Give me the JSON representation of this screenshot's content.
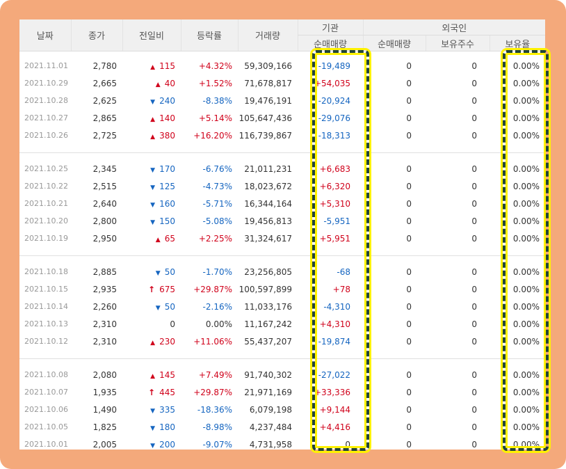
{
  "header": {
    "date": "날짜",
    "close": "종가",
    "change": "전일비",
    "rate": "등락률",
    "volume": "거래량",
    "institution": "기관",
    "institution_net": "순매매량",
    "foreign": "외국인",
    "foreign_net": "순매매량",
    "foreign_shares": "보유주수",
    "foreign_ratio": "보유율"
  },
  "groups": [
    [
      {
        "date": "2021.11.01",
        "close": "2,780",
        "dir": "up",
        "chg": "115",
        "rate": "+4.32%",
        "vol": "59,309,166",
        "inst": "-19,489",
        "inst_dir": "down",
        "fnet": "0",
        "fhold": "0",
        "fratio": "0.00%"
      },
      {
        "date": "2021.10.29",
        "close": "2,665",
        "dir": "up",
        "chg": "40",
        "rate": "+1.52%",
        "vol": "71,678,817",
        "inst": "+54,035",
        "inst_dir": "up",
        "fnet": "0",
        "fhold": "0",
        "fratio": "0.00%"
      },
      {
        "date": "2021.10.28",
        "close": "2,625",
        "dir": "down",
        "chg": "240",
        "rate": "-8.38%",
        "vol": "19,476,191",
        "inst": "-20,924",
        "inst_dir": "down",
        "fnet": "0",
        "fhold": "0",
        "fratio": "0.00%"
      },
      {
        "date": "2021.10.27",
        "close": "2,865",
        "dir": "up",
        "chg": "140",
        "rate": "+5.14%",
        "vol": "105,647,436",
        "inst": "-29,076",
        "inst_dir": "down",
        "fnet": "0",
        "fhold": "0",
        "fratio": "0.00%"
      },
      {
        "date": "2021.10.26",
        "close": "2,725",
        "dir": "up",
        "chg": "380",
        "rate": "+16.20%",
        "vol": "116,739,867",
        "inst": "-18,313",
        "inst_dir": "down",
        "fnet": "0",
        "fhold": "0",
        "fratio": "0.00%"
      }
    ],
    [
      {
        "date": "2021.10.25",
        "close": "2,345",
        "dir": "down",
        "chg": "170",
        "rate": "-6.76%",
        "vol": "21,011,231",
        "inst": "+6,683",
        "inst_dir": "up",
        "fnet": "0",
        "fhold": "0",
        "fratio": "0.00%"
      },
      {
        "date": "2021.10.22",
        "close": "2,515",
        "dir": "down",
        "chg": "125",
        "rate": "-4.73%",
        "vol": "18,023,672",
        "inst": "+6,320",
        "inst_dir": "up",
        "fnet": "0",
        "fhold": "0",
        "fratio": "0.00%"
      },
      {
        "date": "2021.10.21",
        "close": "2,640",
        "dir": "down",
        "chg": "160",
        "rate": "-5.71%",
        "vol": "16,344,164",
        "inst": "+5,310",
        "inst_dir": "up",
        "fnet": "0",
        "fhold": "0",
        "fratio": "0.00%"
      },
      {
        "date": "2021.10.20",
        "close": "2,800",
        "dir": "down",
        "chg": "150",
        "rate": "-5.08%",
        "vol": "19,456,813",
        "inst": "-5,951",
        "inst_dir": "down",
        "fnet": "0",
        "fhold": "0",
        "fratio": "0.00%"
      },
      {
        "date": "2021.10.19",
        "close": "2,950",
        "dir": "up",
        "chg": "65",
        "rate": "+2.25%",
        "vol": "31,324,617",
        "inst": "+5,951",
        "inst_dir": "up",
        "fnet": "0",
        "fhold": "0",
        "fratio": "0.00%"
      }
    ],
    [
      {
        "date": "2021.10.18",
        "close": "2,885",
        "dir": "down",
        "chg": "50",
        "rate": "-1.70%",
        "vol": "23,256,805",
        "inst": "-68",
        "inst_dir": "down",
        "fnet": "0",
        "fhold": "0",
        "fratio": "0.00%"
      },
      {
        "date": "2021.10.15",
        "close": "2,935",
        "dir": "limit",
        "chg": "675",
        "rate": "+29.87%",
        "vol": "100,597,899",
        "inst": "+78",
        "inst_dir": "up",
        "fnet": "0",
        "fhold": "0",
        "fratio": "0.00%"
      },
      {
        "date": "2021.10.14",
        "close": "2,260",
        "dir": "down",
        "chg": "50",
        "rate": "-2.16%",
        "vol": "11,033,176",
        "inst": "-4,310",
        "inst_dir": "down",
        "fnet": "0",
        "fhold": "0",
        "fratio": "0.00%"
      },
      {
        "date": "2021.10.13",
        "close": "2,310",
        "dir": "flat",
        "chg": "0",
        "rate": "0.00%",
        "vol": "11,167,242",
        "inst": "+4,310",
        "inst_dir": "up",
        "fnet": "0",
        "fhold": "0",
        "fratio": "0.00%"
      },
      {
        "date": "2021.10.12",
        "close": "2,310",
        "dir": "up",
        "chg": "230",
        "rate": "+11.06%",
        "vol": "55,437,207",
        "inst": "-19,874",
        "inst_dir": "down",
        "fnet": "0",
        "fhold": "0",
        "fratio": "0.00%"
      }
    ],
    [
      {
        "date": "2021.10.08",
        "close": "2,080",
        "dir": "up",
        "chg": "145",
        "rate": "+7.49%",
        "vol": "91,740,302",
        "inst": "-27,022",
        "inst_dir": "down",
        "fnet": "0",
        "fhold": "0",
        "fratio": "0.00%"
      },
      {
        "date": "2021.10.07",
        "close": "1,935",
        "dir": "limit",
        "chg": "445",
        "rate": "+29.87%",
        "vol": "21,971,169",
        "inst": "+33,336",
        "inst_dir": "up",
        "fnet": "0",
        "fhold": "0",
        "fratio": "0.00%"
      },
      {
        "date": "2021.10.06",
        "close": "1,490",
        "dir": "down",
        "chg": "335",
        "rate": "-18.36%",
        "vol": "6,079,198",
        "inst": "+9,144",
        "inst_dir": "up",
        "fnet": "0",
        "fhold": "0",
        "fratio": "0.00%"
      },
      {
        "date": "2021.10.05",
        "close": "1,825",
        "dir": "down",
        "chg": "180",
        "rate": "-8.98%",
        "vol": "4,237,484",
        "inst": "+4,416",
        "inst_dir": "up",
        "fnet": "0",
        "fhold": "0",
        "fratio": "0.00%"
      },
      {
        "date": "2021.10.01",
        "close": "2,005",
        "dir": "down",
        "chg": "200",
        "rate": "-9.07%",
        "vol": "4,731,958",
        "inst": "0",
        "inst_dir": "flat",
        "fnet": "0",
        "fhold": "0",
        "fratio": "0.00%"
      }
    ]
  ],
  "icons": {
    "up": "triangle-up-icon",
    "down": "triangle-down-icon",
    "limit": "upper-limit-arrow-icon"
  },
  "colors": {
    "up": "#d0021b",
    "down": "#1565c0",
    "highlight_border": "#21443a",
    "highlight_glow": "#fff200",
    "frame": "#f4a97b"
  }
}
